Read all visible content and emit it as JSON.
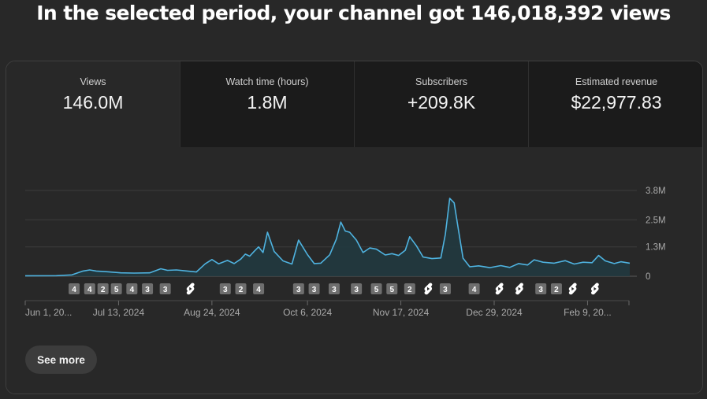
{
  "headline": "In the selected period, your channel got 146,018,392 views",
  "metrics": [
    {
      "label": "Views",
      "value": "146.0M"
    },
    {
      "label": "Watch time (hours)",
      "value": "1.8M"
    },
    {
      "label": "Subscribers",
      "value": "+209.8K"
    },
    {
      "label": "Estimated revenue",
      "value": "$22,977.83"
    }
  ],
  "see_more_label": "See more",
  "colors": {
    "line": "#4fb3e0",
    "area": "#21393f",
    "grid": "#3c3c3c",
    "badge": "#6e6e6e"
  },
  "chart_data": {
    "type": "area",
    "title": "",
    "xlabel": "",
    "ylabel": "",
    "ylim": [
      0,
      3800000
    ],
    "y_ticks": [
      {
        "value": 3800000,
        "label": "3.8M"
      },
      {
        "value": 2500000,
        "label": "2.5M"
      },
      {
        "value": 1300000,
        "label": "1.3M"
      },
      {
        "value": 0,
        "label": "0"
      }
    ],
    "x_range": [
      "2024-06-01",
      "2025-02-28"
    ],
    "x_ticks": [
      {
        "date": "2024-06-01",
        "label": "Jun 1, 20..."
      },
      {
        "date": "2024-07-13",
        "label": "Jul 13, 2024"
      },
      {
        "date": "2024-08-24",
        "label": "Aug 24, 2024"
      },
      {
        "date": "2024-10-06",
        "label": "Oct 6, 2024"
      },
      {
        "date": "2024-11-17",
        "label": "Nov 17, 2024"
      },
      {
        "date": "2024-12-29",
        "label": "Dec 29, 2024"
      },
      {
        "date": "2025-02-09",
        "label": "Feb 9, 20..."
      }
    ],
    "grid": true,
    "series": [
      {
        "points": [
          [
            "2024-06-01",
            20000
          ],
          [
            "2024-06-15",
            25000
          ],
          [
            "2024-06-22",
            60000
          ],
          [
            "2024-06-27",
            230000
          ],
          [
            "2024-06-30",
            280000
          ],
          [
            "2024-07-03",
            230000
          ],
          [
            "2024-07-08",
            200000
          ],
          [
            "2024-07-14",
            150000
          ],
          [
            "2024-07-20",
            140000
          ],
          [
            "2024-07-27",
            150000
          ],
          [
            "2024-08-01",
            330000
          ],
          [
            "2024-08-04",
            260000
          ],
          [
            "2024-08-08",
            280000
          ],
          [
            "2024-08-13",
            230000
          ],
          [
            "2024-08-17",
            190000
          ],
          [
            "2024-08-21",
            550000
          ],
          [
            "2024-08-24",
            740000
          ],
          [
            "2024-08-27",
            550000
          ],
          [
            "2024-08-31",
            700000
          ],
          [
            "2024-09-03",
            560000
          ],
          [
            "2024-09-06",
            760000
          ],
          [
            "2024-09-08",
            980000
          ],
          [
            "2024-09-10",
            890000
          ],
          [
            "2024-09-12",
            1100000
          ],
          [
            "2024-09-14",
            1300000
          ],
          [
            "2024-09-16",
            1050000
          ],
          [
            "2024-09-18",
            1950000
          ],
          [
            "2024-09-21",
            1100000
          ],
          [
            "2024-09-25",
            680000
          ],
          [
            "2024-09-29",
            540000
          ],
          [
            "2024-10-02",
            1600000
          ],
          [
            "2024-10-06",
            960000
          ],
          [
            "2024-10-09",
            560000
          ],
          [
            "2024-10-12",
            580000
          ],
          [
            "2024-10-16",
            950000
          ],
          [
            "2024-10-19",
            1650000
          ],
          [
            "2024-10-21",
            2400000
          ],
          [
            "2024-10-23",
            2000000
          ],
          [
            "2024-10-25",
            1950000
          ],
          [
            "2024-10-28",
            1600000
          ],
          [
            "2024-10-31",
            1050000
          ],
          [
            "2024-11-03",
            1250000
          ],
          [
            "2024-11-06",
            1200000
          ],
          [
            "2024-11-10",
            940000
          ],
          [
            "2024-11-13",
            1000000
          ],
          [
            "2024-11-16",
            920000
          ],
          [
            "2024-11-19",
            1150000
          ],
          [
            "2024-11-21",
            1750000
          ],
          [
            "2024-11-24",
            1350000
          ],
          [
            "2024-11-27",
            850000
          ],
          [
            "2024-12-01",
            780000
          ],
          [
            "2024-12-05",
            810000
          ],
          [
            "2024-12-07",
            1850000
          ],
          [
            "2024-12-09",
            3450000
          ],
          [
            "2024-12-11",
            3250000
          ],
          [
            "2024-12-13",
            2000000
          ],
          [
            "2024-12-15",
            800000
          ],
          [
            "2024-12-18",
            420000
          ],
          [
            "2024-12-22",
            460000
          ],
          [
            "2024-12-27",
            380000
          ],
          [
            "2025-01-01",
            470000
          ],
          [
            "2025-01-05",
            390000
          ],
          [
            "2025-01-09",
            560000
          ],
          [
            "2025-01-13",
            500000
          ],
          [
            "2025-01-16",
            730000
          ],
          [
            "2025-01-20",
            620000
          ],
          [
            "2025-01-25",
            580000
          ],
          [
            "2025-01-30",
            690000
          ],
          [
            "2025-02-03",
            540000
          ],
          [
            "2025-02-07",
            620000
          ],
          [
            "2025-02-11",
            600000
          ],
          [
            "2025-02-14",
            920000
          ],
          [
            "2025-02-17",
            680000
          ],
          [
            "2025-02-21",
            560000
          ],
          [
            "2025-02-24",
            640000
          ],
          [
            "2025-02-28",
            580000
          ]
        ]
      }
    ]
  },
  "markers": [
    {
      "kind": "count",
      "label": "4",
      "date": "2024-06-23"
    },
    {
      "kind": "count",
      "label": "4",
      "date": "2024-06-30"
    },
    {
      "kind": "count",
      "label": "2",
      "date": "2024-07-06"
    },
    {
      "kind": "count",
      "label": "5",
      "date": "2024-07-12"
    },
    {
      "kind": "count",
      "label": "4",
      "date": "2024-07-19"
    },
    {
      "kind": "count",
      "label": "3",
      "date": "2024-07-26"
    },
    {
      "kind": "count",
      "label": "3",
      "date": "2024-08-03"
    },
    {
      "kind": "shorts",
      "label": "",
      "date": "2024-08-14"
    },
    {
      "kind": "count",
      "label": "3",
      "date": "2024-08-30"
    },
    {
      "kind": "count",
      "label": "2",
      "date": "2024-09-06"
    },
    {
      "kind": "count",
      "label": "4",
      "date": "2024-09-14"
    },
    {
      "kind": "count",
      "label": "3",
      "date": "2024-10-02"
    },
    {
      "kind": "count",
      "label": "3",
      "date": "2024-10-09"
    },
    {
      "kind": "count",
      "label": "3",
      "date": "2024-10-18"
    },
    {
      "kind": "count",
      "label": "3",
      "date": "2024-10-28"
    },
    {
      "kind": "count",
      "label": "5",
      "date": "2024-11-06"
    },
    {
      "kind": "count",
      "label": "5",
      "date": "2024-11-13"
    },
    {
      "kind": "count",
      "label": "2",
      "date": "2024-11-21"
    },
    {
      "kind": "shorts",
      "label": "",
      "date": "2024-11-29"
    },
    {
      "kind": "count",
      "label": "3",
      "date": "2024-12-07"
    },
    {
      "kind": "count",
      "label": "4",
      "date": "2024-12-20"
    },
    {
      "kind": "shorts",
      "label": "",
      "date": "2024-12-31"
    },
    {
      "kind": "shorts",
      "label": "",
      "date": "2025-01-09"
    },
    {
      "kind": "count",
      "label": "3",
      "date": "2025-01-19"
    },
    {
      "kind": "count",
      "label": "2",
      "date": "2025-01-26"
    },
    {
      "kind": "shorts",
      "label": "",
      "date": "2025-02-02"
    },
    {
      "kind": "shorts",
      "label": "",
      "date": "2025-02-12"
    }
  ]
}
